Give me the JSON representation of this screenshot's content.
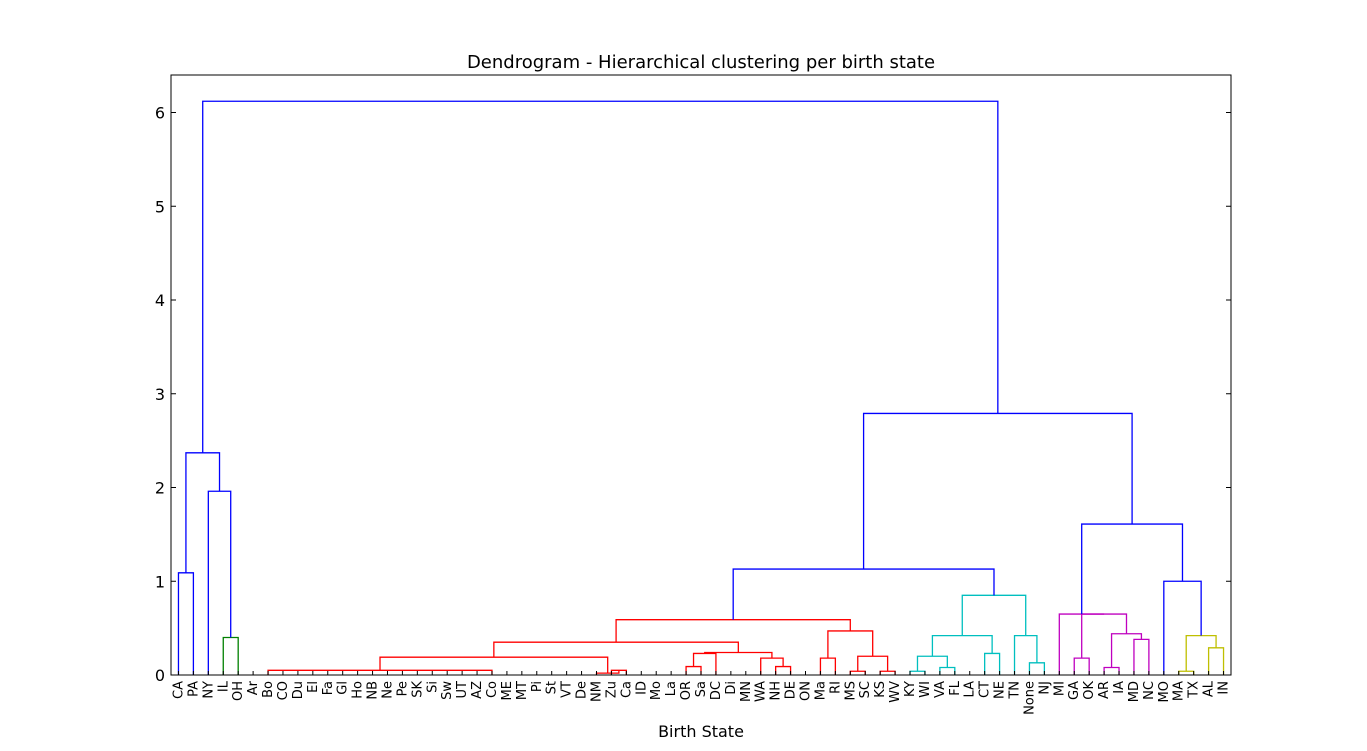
{
  "chart_data": {
    "type": "dendrogram",
    "title": "Dendrogram - Hierarchical clustering per birth state",
    "xlabel": "Birth State",
    "ylabel": "",
    "ylim": [
      0,
      6.4
    ],
    "yticks": [
      0,
      1,
      2,
      3,
      4,
      5,
      6
    ],
    "leaves": [
      "CA",
      "PA",
      "NY",
      "IL",
      "OH",
      "Ar",
      "Bo",
      "CO",
      "Du",
      "El",
      "Fa",
      "Gl",
      "Ho",
      "NB",
      "Ne",
      "Pe",
      "SK",
      "Si",
      "Sw",
      "UT",
      "AZ",
      "Co",
      "ME",
      "MT",
      "Pi",
      "St",
      "VT",
      "De",
      "NM",
      "Zu",
      "Ca",
      "ID",
      "Mo",
      "La",
      "OR",
      "Sa",
      "DC",
      "Di",
      "MN",
      "WA",
      "NH",
      "DE",
      "ON",
      "Ma",
      "RI",
      "MS",
      "SC",
      "KS",
      "WV",
      "KY",
      "WI",
      "VA",
      "FL",
      "LA",
      "CT",
      "NE",
      "TN",
      "None",
      "NJ",
      "MI",
      "GA",
      "OK",
      "AR",
      "IA",
      "MD",
      "NC",
      "MO",
      "MA",
      "TX",
      "AL",
      "IN"
    ],
    "colors": {
      "above_threshold": "#0000ff",
      "green": "#008000",
      "red": "#ff0000",
      "cyan": "#00bfbf",
      "magenta": "#bf00bf",
      "olive": "#bfbf00"
    },
    "links": [
      {
        "l": 0,
        "r": 1,
        "h": 1.09,
        "c": "above_threshold"
      },
      {
        "l": 3,
        "r": 4,
        "h": 0.4,
        "c": "green"
      },
      {
        "l": 2,
        "r": "n2",
        "h": 1.96,
        "c": "above_threshold"
      },
      {
        "l": "n1",
        "r": "n3",
        "h": 2.37,
        "c": "above_threshold"
      },
      {
        "l": 6,
        "r": 21,
        "h": 0.05,
        "c": "red"
      },
      {
        "l": 29,
        "r": 30,
        "h": 0.05,
        "c": "red"
      },
      {
        "l": 28,
        "r": "n6",
        "h": 0.02,
        "c": "red"
      },
      {
        "l": "n5",
        "r": "n7",
        "h": 0.19,
        "c": "red"
      },
      {
        "l": 34,
        "r": 35,
        "h": 0.09,
        "c": "red"
      },
      {
        "l": "n9",
        "r": 36,
        "h": 0.23,
        "c": "red"
      },
      {
        "l": 40,
        "r": 41,
        "h": 0.09,
        "c": "red"
      },
      {
        "l": 39,
        "r": "n11",
        "h": 0.18,
        "c": "red"
      },
      {
        "l": "n10",
        "r": "n12",
        "h": 0.24,
        "c": "red"
      },
      {
        "l": "n8",
        "r": "n13",
        "h": 0.35,
        "c": "red"
      },
      {
        "l": 43,
        "r": 44,
        "h": 0.18,
        "c": "red"
      },
      {
        "l": 45,
        "r": 46,
        "h": 0.04,
        "c": "red"
      },
      {
        "l": 47,
        "r": 48,
        "h": 0.04,
        "c": "red"
      },
      {
        "l": "n16",
        "r": "n17",
        "h": 0.2,
        "c": "red"
      },
      {
        "l": "n15",
        "r": "n18",
        "h": 0.47,
        "c": "red"
      },
      {
        "l": "n14",
        "r": "n19",
        "h": 0.59,
        "c": "red"
      },
      {
        "l": 49,
        "r": 50,
        "h": 0.04,
        "c": "cyan"
      },
      {
        "l": 51,
        "r": 52,
        "h": 0.08,
        "c": "cyan"
      },
      {
        "l": "n21",
        "r": "n22",
        "h": 0.2,
        "c": "cyan"
      },
      {
        "l": 54,
        "r": 55,
        "h": 0.23,
        "c": "cyan"
      },
      {
        "l": "n23",
        "r": "n24",
        "h": 0.42,
        "c": "cyan"
      },
      {
        "l": 57,
        "r": 58,
        "h": 0.13,
        "c": "cyan"
      },
      {
        "l": 56,
        "r": "n26",
        "h": 0.42,
        "c": "cyan"
      },
      {
        "l": "n25",
        "r": "n27",
        "h": 0.85,
        "c": "cyan"
      },
      {
        "l": "n20",
        "r": "n28",
        "h": 1.13,
        "c": "above_threshold"
      },
      {
        "l": 60,
        "r": 61,
        "h": 0.18,
        "c": "magenta"
      },
      {
        "l": 62,
        "r": 63,
        "h": 0.08,
        "c": "magenta"
      },
      {
        "l": 64,
        "r": 65,
        "h": 0.38,
        "c": "magenta"
      },
      {
        "l": "n31",
        "r": "n32",
        "h": 0.44,
        "c": "magenta"
      },
      {
        "l": "n30",
        "r": "n33",
        "h": 0.65,
        "c": "magenta"
      },
      {
        "l": 59,
        "r": "n34",
        "h": 0.65,
        "c": "magenta"
      },
      {
        "l": 67,
        "r": 68,
        "h": 0.04,
        "c": "olive"
      },
      {
        "l": 69,
        "r": 70,
        "h": 0.29,
        "c": "olive"
      },
      {
        "l": "n36",
        "r": "n37",
        "h": 0.42,
        "c": "olive"
      },
      {
        "l": 66,
        "r": "n38",
        "h": 1.0,
        "c": "above_threshold"
      },
      {
        "l": "n35",
        "r": "n39",
        "h": 1.61,
        "c": "above_threshold"
      },
      {
        "l": "n29",
        "r": "n40",
        "h": 2.79,
        "c": "above_threshold"
      },
      {
        "l": "n4",
        "r": "n41",
        "h": 6.12,
        "c": "above_threshold"
      }
    ]
  }
}
